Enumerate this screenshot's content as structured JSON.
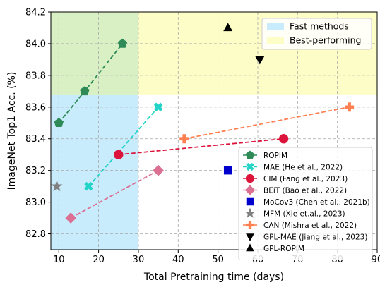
{
  "chart_data": {
    "type": "scatter",
    "xlabel": "Total Pretraining time (days)",
    "ylabel": "ImageNet Top1 Acc. (%)",
    "xlim": [
      8,
      90
    ],
    "ylim": [
      82.7,
      84.2
    ],
    "xticks": [
      10,
      20,
      30,
      40,
      50,
      60,
      70,
      80,
      90
    ],
    "yticks": [
      82.8,
      83.0,
      83.2,
      83.4,
      83.6,
      83.8,
      84.0,
      84.2
    ],
    "xtick_labels": [
      "10",
      "20",
      "30",
      "40",
      "50",
      "60",
      "70",
      "80",
      "90"
    ],
    "ytick_labels": [
      "82.8",
      "83.0",
      "83.2",
      "83.4",
      "83.6",
      "83.8",
      "84.0",
      "84.2"
    ],
    "grid": true,
    "regions": [
      {
        "label": "Fast methods",
        "x_range": [
          8,
          30
        ],
        "y_range": [
          82.7,
          84.2
        ],
        "color": "#c9ecfc"
      },
      {
        "label": "Best-performing",
        "x_range": [
          8,
          90
        ],
        "y_range": [
          83.68,
          84.2
        ],
        "color": "#fdfdc7"
      }
    ],
    "series": [
      {
        "name": "ROPIM",
        "marker": "pentagon",
        "color": "#2e8b57",
        "line": true,
        "points": [
          [
            10,
            83.5
          ],
          [
            16.5,
            83.7
          ],
          [
            26,
            84.0
          ]
        ]
      },
      {
        "name": "MAE (He et al., 2022)",
        "marker": "x-filled",
        "color": "#22d3c8",
        "line": true,
        "points": [
          [
            17.5,
            83.1
          ],
          [
            35,
            83.6
          ]
        ]
      },
      {
        "name": "CIM (Fang et al., 2023)",
        "marker": "circle",
        "color": "#dc143c",
        "line": true,
        "points": [
          [
            25,
            83.3
          ],
          [
            66.5,
            83.4
          ]
        ]
      },
      {
        "name": "BEiT (Bao et al., 2022)",
        "marker": "diamond",
        "color": "#db7093",
        "line": true,
        "points": [
          [
            13,
            82.9
          ],
          [
            35,
            83.2
          ]
        ]
      },
      {
        "name": "MoCov3 (Chen et al., 2021b)",
        "marker": "square",
        "color": "#0000cd",
        "line": false,
        "points": [
          [
            52.5,
            83.2
          ]
        ]
      },
      {
        "name": "MFM (Xie et.al., 2023)",
        "marker": "star",
        "color": "#808080",
        "line": false,
        "points": [
          [
            9.5,
            83.1
          ]
        ]
      },
      {
        "name": "CAN (Mishra et al., 2022)",
        "marker": "plus-filled",
        "color": "#ff7f50",
        "line": true,
        "points": [
          [
            41.5,
            83.4
          ],
          [
            83,
            83.6
          ]
        ]
      },
      {
        "name": "GPL-MAE (Jiang et al., 2023)",
        "marker": "triangle-down",
        "color": "#000000",
        "line": false,
        "points": [
          [
            60.5,
            83.9
          ]
        ]
      },
      {
        "name": "GPL-ROPIM",
        "marker": "triangle-up",
        "color": "#000000",
        "line": false,
        "points": [
          [
            52.5,
            84.1
          ]
        ]
      }
    ],
    "legend_position": "lower-right",
    "region_legend_position": "upper-right"
  }
}
